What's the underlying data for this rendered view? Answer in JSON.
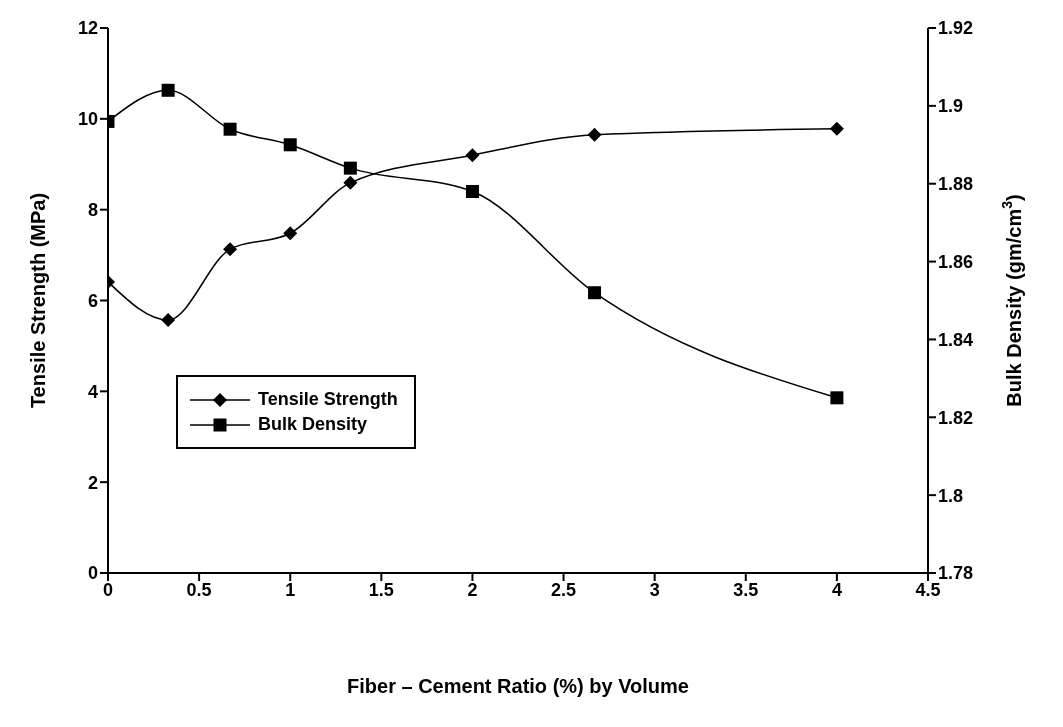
{
  "chart_data": {
    "type": "line",
    "xlabel": "Fiber – Cement Ratio (%) by Volume",
    "ylabel": "Tensile Strength (MPa)",
    "y2label": "Bulk Density (gm/cm$^{3}$)",
    "x": [
      0,
      0.33,
      0.67,
      1,
      1.33,
      2,
      2.67,
      4
    ],
    "series": [
      {
        "name": "Tensile Strength",
        "color": "#000000",
        "marker": "diamond",
        "values": [
          6.41,
          5.57,
          7.13,
          7.48,
          8.59,
          9.2,
          9.65,
          9.78
        ]
      },
      {
        "name": "Bulk Density",
        "color": "#000000",
        "marker": "square",
        "axis": "y2",
        "values": [
          1.896,
          1.904,
          1.894,
          1.89,
          1.884,
          1.878,
          1.852,
          1.825
        ]
      }
    ],
    "xlim": [
      0,
      4.5
    ],
    "xticks": [
      0,
      0.5,
      1,
      1.5,
      2,
      2.5,
      3,
      3.5,
      4,
      4.5
    ],
    "ylim": [
      0,
      12
    ],
    "yticks": [
      0,
      2,
      4,
      6,
      8,
      10,
      12
    ],
    "y2lim": [
      1.78,
      1.92
    ],
    "y2ticks": [
      1.78,
      1.8,
      1.82,
      1.84,
      1.86,
      1.88,
      1.9,
      1.92
    ],
    "legend": "bottom left",
    "grid": false,
    "line_style": "solid"
  }
}
